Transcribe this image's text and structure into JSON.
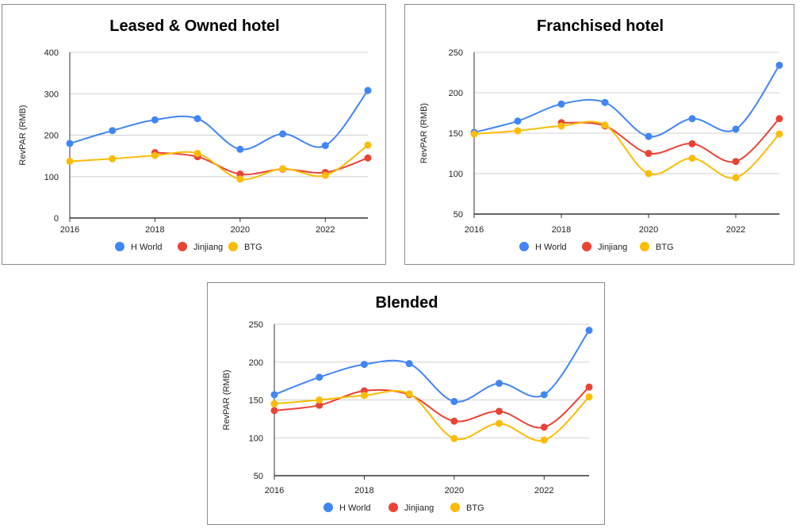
{
  "colors": {
    "h_world": "#4285f4",
    "jinjiang": "#ea4335",
    "btg": "#fbbc04",
    "grid": "#d0d0d0",
    "axis": "#333333"
  },
  "chart_data": [
    {
      "type": "line",
      "title": "Leased & Owned hotel",
      "xlabel": "",
      "ylabel": "RevPAR (RMB)",
      "xlim": [
        2016,
        2023
      ],
      "ylim": [
        0,
        400
      ],
      "yticks": [
        "0",
        "100",
        "200",
        "300",
        "400"
      ],
      "xticks": [
        "2016",
        "2018",
        "2020",
        "2022"
      ],
      "series": [
        {
          "name": "H World",
          "color": "#4285f4",
          "x": [
            2016,
            2017,
            2018,
            2019,
            2020,
            2021,
            2022,
            2023
          ],
          "values": [
            180,
            211,
            237,
            240,
            166,
            203,
            175,
            308
          ]
        },
        {
          "name": "Jinjiang",
          "color": "#ea4335",
          "x": [
            2018,
            2019,
            2020,
            2021,
            2022,
            2023
          ],
          "values": [
            158,
            148,
            106,
            118,
            110,
            145
          ]
        },
        {
          "name": "BTG",
          "color": "#fbbc04",
          "x": [
            2016,
            2017,
            2018,
            2019,
            2020,
            2021,
            2022,
            2023
          ],
          "values": [
            137,
            143,
            151,
            156,
            94,
            119,
            103,
            176
          ]
        }
      ]
    },
    {
      "type": "line",
      "title": "Franchised hotel",
      "xlabel": "",
      "ylabel": "RevPAR (RMB)",
      "xlim": [
        2016,
        2023
      ],
      "ylim": [
        50,
        250
      ],
      "yticks": [
        "50",
        "100",
        "150",
        "200",
        "250"
      ],
      "xticks": [
        "2016",
        "2018",
        "2020",
        "2022"
      ],
      "series": [
        {
          "name": "H World",
          "color": "#4285f4",
          "x": [
            2016,
            2017,
            2018,
            2019,
            2020,
            2021,
            2022,
            2023
          ],
          "values": [
            151,
            165,
            186,
            188,
            146,
            168,
            155,
            234
          ]
        },
        {
          "name": "Jinjiang",
          "color": "#ea4335",
          "x": [
            2018,
            2019,
            2020,
            2021,
            2022,
            2023
          ],
          "values": [
            163,
            159,
            125,
            137,
            115,
            168
          ]
        },
        {
          "name": "BTG",
          "color": "#fbbc04",
          "x": [
            2016,
            2017,
            2018,
            2019,
            2020,
            2021,
            2022,
            2023
          ],
          "values": [
            149,
            153,
            159,
            160,
            100,
            119,
            95,
            149
          ]
        }
      ]
    },
    {
      "type": "line",
      "title": "Blended",
      "xlabel": "",
      "ylabel": "RevPAR (RMB)",
      "xlim": [
        2016,
        2023
      ],
      "ylim": [
        50,
        250
      ],
      "yticks": [
        "50",
        "100",
        "150",
        "200",
        "250"
      ],
      "xticks": [
        "2016",
        "2018",
        "2020",
        "2022"
      ],
      "series": [
        {
          "name": "H World",
          "color": "#4285f4",
          "x": [
            2016,
            2017,
            2018,
            2019,
            2020,
            2021,
            2022,
            2023
          ],
          "values": [
            157,
            180,
            197,
            198,
            148,
            172,
            157,
            242
          ]
        },
        {
          "name": "Jinjiang",
          "color": "#ea4335",
          "x": [
            2016,
            2017,
            2018,
            2019,
            2020,
            2021,
            2022,
            2023
          ],
          "values": [
            136,
            143,
            162,
            157,
            122,
            135,
            114,
            167
          ]
        },
        {
          "name": "BTG",
          "color": "#fbbc04",
          "x": [
            2016,
            2017,
            2018,
            2019,
            2020,
            2021,
            2022,
            2023
          ],
          "values": [
            145,
            150,
            156,
            158,
            99,
            119,
            97,
            154
          ]
        }
      ]
    }
  ]
}
